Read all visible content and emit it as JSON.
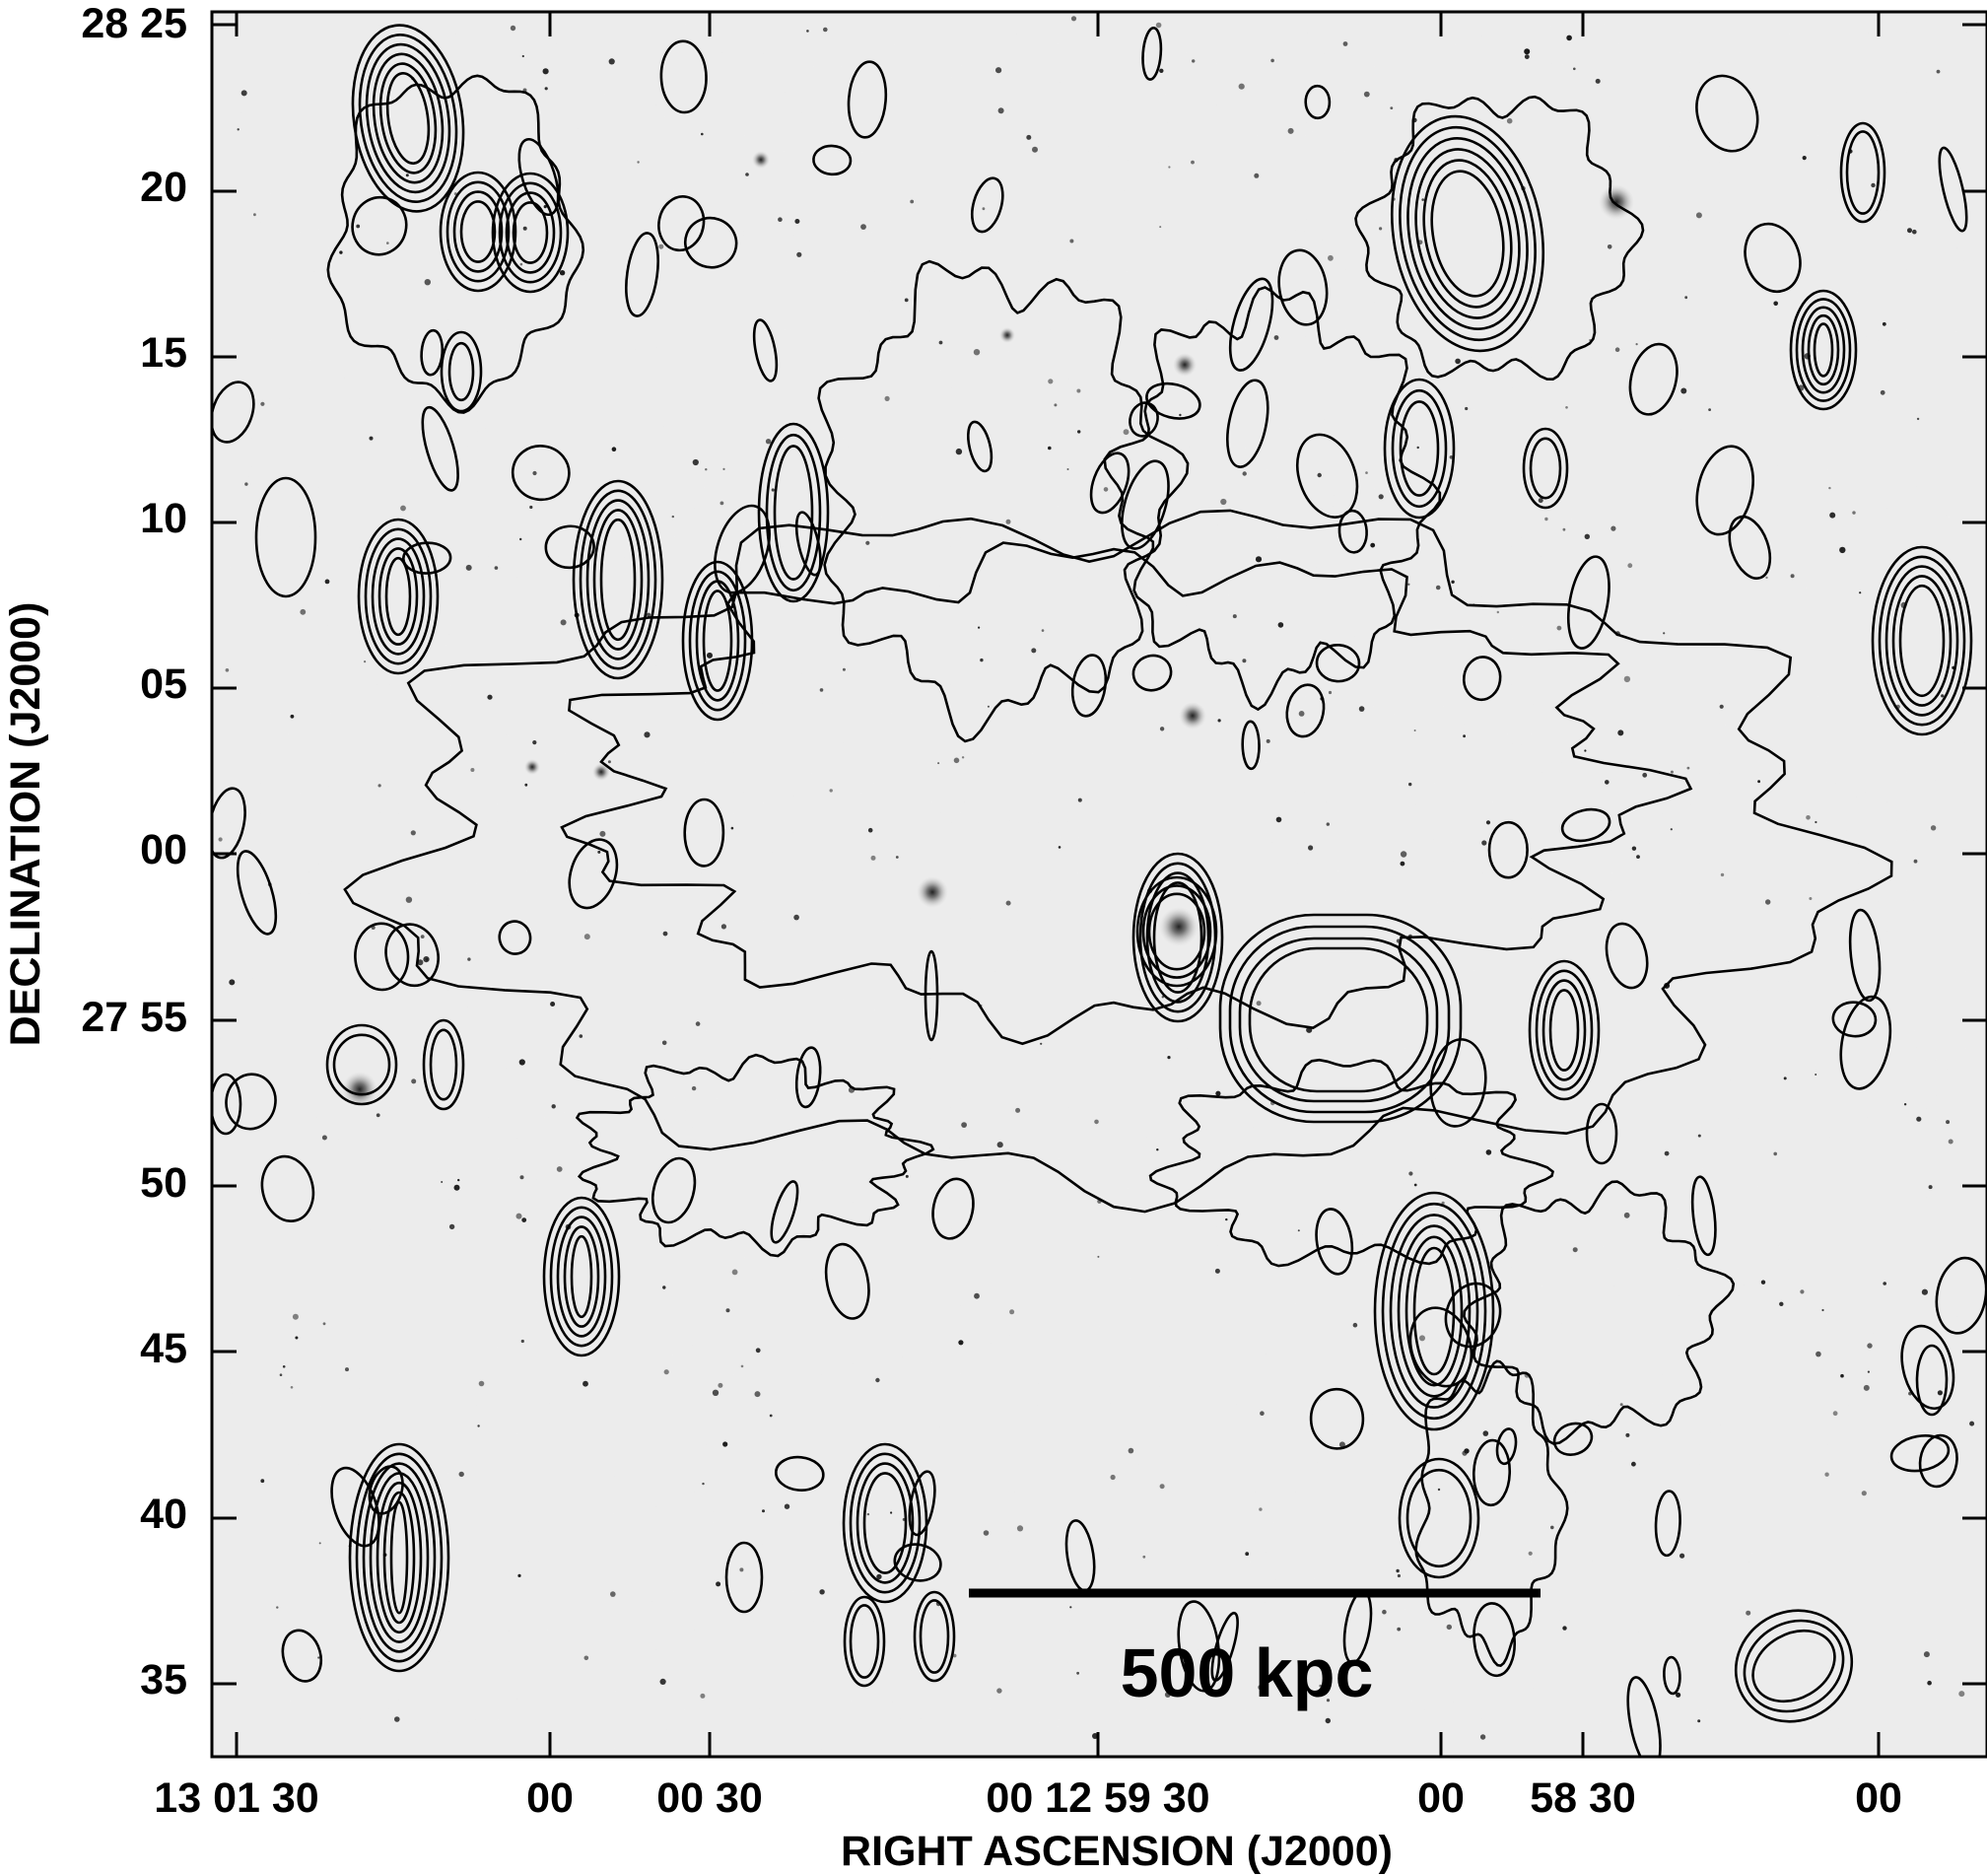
{
  "figure": {
    "description_kind": "optical image with radio contours",
    "axis_x": {
      "title": "RIGHT ASCENSION (J2000)",
      "ticks": [
        "13 01 30",
        "00",
        "00 30",
        "00 12 59 30",
        "00",
        "58 30",
        "00"
      ]
    },
    "axis_y": {
      "title": "DECLINATION (J2000)",
      "ticks": [
        "28 25",
        "20",
        "15",
        "10",
        "05",
        "00",
        "27 55",
        "50",
        "45",
        "40",
        "35"
      ]
    },
    "scale_bar": {
      "label": "500 kpc"
    },
    "colors": {
      "contour": "#000000",
      "background": "#ebebeb",
      "frame": "#000000"
    }
  }
}
